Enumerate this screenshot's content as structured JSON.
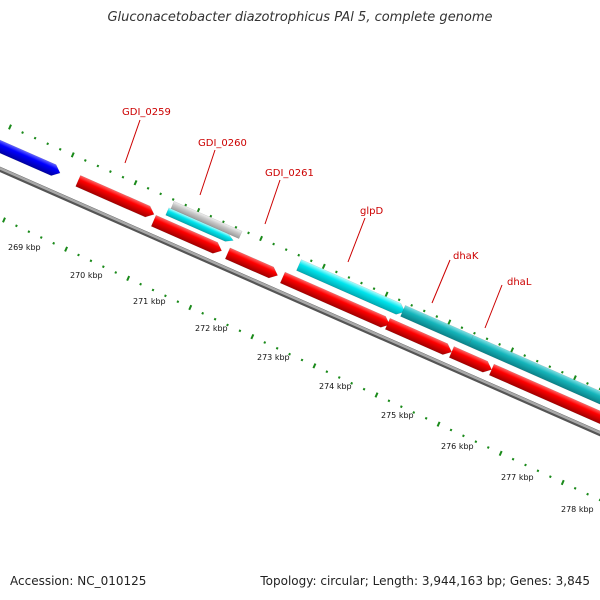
{
  "title": "Gluconacetobacter diazotrophicus PAl 5, complete genome",
  "footer": {
    "accession": "Accession: NC_010125",
    "info": "Topology: circular; Length: 3,944,163 bp; Genes: 3,845"
  },
  "colors": {
    "background": "#ffffff",
    "backbone": "#8c8c8c",
    "tick_green": "#1a8a1a",
    "cds_red": "#ff0000",
    "cds_blue": "#0000ff",
    "gene_cyan": "#00e5ee",
    "gene_teal": "#15b5bb",
    "gene_grey": "#c8c8c8",
    "label_red": "#cc0000"
  },
  "map": {
    "scale_labels": [
      "269 kbp",
      "270 kbp",
      "271 kbp",
      "272 kbp",
      "273 kbp",
      "274 kbp",
      "275 kbp",
      "276 kbp",
      "277 kbp",
      "278 kbp"
    ],
    "genes": [
      {
        "id": "blue-cds",
        "name": "",
        "strand": "forward",
        "type": "cds_blue"
      },
      {
        "id": "gdi0259",
        "name": "GDI_0259",
        "strand": "forward",
        "type": "cds_red"
      },
      {
        "id": "gdi0260-grey",
        "name": "GDI_0260",
        "strand": "reverse",
        "type": "gene_grey"
      },
      {
        "id": "gdi0260-cyan",
        "name": "",
        "strand": "reverse",
        "type": "gene_cyan"
      },
      {
        "id": "gdi0260-cds",
        "name": "",
        "strand": "forward",
        "type": "cds_red"
      },
      {
        "id": "gdi0261",
        "name": "GDI_0261",
        "strand": "forward",
        "type": "cds_red"
      },
      {
        "id": "glpd-gene",
        "name": "glpD",
        "strand": "reverse",
        "type": "gene_cyan"
      },
      {
        "id": "glpd-cds",
        "name": "",
        "strand": "forward",
        "type": "cds_red"
      },
      {
        "id": "dhak-gene",
        "name": "dhaK",
        "strand": "reverse",
        "type": "gene_teal"
      },
      {
        "id": "dhak-cds",
        "name": "",
        "strand": "forward",
        "type": "cds_red"
      },
      {
        "id": "dhal-gene",
        "name": "dhaL",
        "strand": "reverse",
        "type": "gene_teal"
      },
      {
        "id": "dhal-cds",
        "name": "",
        "strand": "forward",
        "type": "cds_red"
      }
    ]
  }
}
